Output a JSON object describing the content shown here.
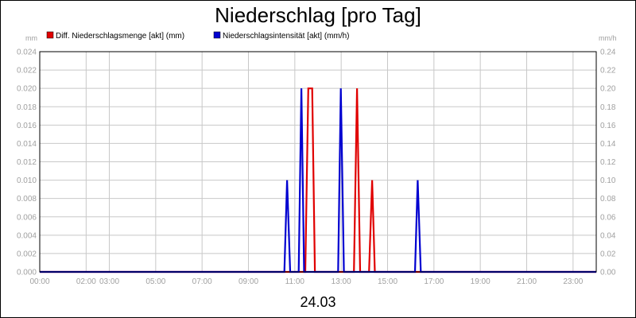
{
  "chart_data": {
    "type": "line",
    "title": "Niederschlag [pro Tag]",
    "date_label": "24.03",
    "left_unit": "mm",
    "right_unit": "mm/h",
    "ylim_left": [
      0,
      0.024
    ],
    "ylim_right": [
      0,
      0.24
    ],
    "y_ticks_left": [
      "0.000",
      "0.002",
      "0.004",
      "0.006",
      "0.008",
      "0.010",
      "0.012",
      "0.014",
      "0.016",
      "0.018",
      "0.020",
      "0.022",
      "0.024"
    ],
    "y_ticks_right": [
      "0.00",
      "0.02",
      "0.04",
      "0.06",
      "0.08",
      "0.10",
      "0.12",
      "0.14",
      "0.16",
      "0.18",
      "0.20",
      "0.22",
      "0.24"
    ],
    "xlim": [
      "00:00",
      "24:00"
    ],
    "x_ticks": [
      "00:00",
      "02:00",
      "03:00",
      "05:00",
      "07:00",
      "09:00",
      "11:00",
      "13:00",
      "15:00",
      "17:00",
      "19:00",
      "21:00",
      "23:00"
    ],
    "grid": true,
    "legend_position": "top-left",
    "series": [
      {
        "name": "Diff. Niederschlagsmenge [akt] (mm)",
        "axis": "left",
        "color": "#e00000",
        "x": [
          "00:00",
          "11:27",
          "11:35",
          "11:45",
          "11:52",
          "13:33",
          "13:41",
          "13:49",
          "14:12",
          "14:20",
          "14:27",
          "24:00"
        ],
        "y": [
          0,
          0,
          0.02,
          0.02,
          0,
          0,
          0.02,
          0,
          0,
          0.01,
          0,
          0
        ]
      },
      {
        "name": "Niederschlagsintensität [akt] (mm/h)",
        "axis": "right",
        "color": "#0000d0",
        "x": [
          "00:00",
          "10:33",
          "10:40",
          "10:48",
          "11:10",
          "11:17",
          "11:24",
          "12:52",
          "12:59",
          "13:07",
          "16:11",
          "16:18",
          "16:26",
          "24:00"
        ],
        "y": [
          0,
          0,
          0.1,
          0,
          0,
          0.2,
          0,
          0,
          0.2,
          0,
          0,
          0.1,
          0,
          0
        ]
      }
    ]
  }
}
